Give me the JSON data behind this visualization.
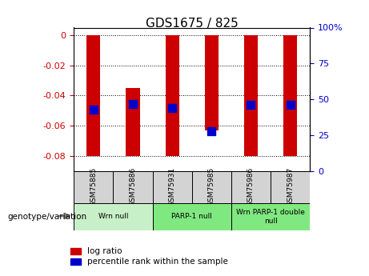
{
  "title": "GDS1675 / 825",
  "samples": [
    "GSM75885",
    "GSM75886",
    "GSM75931",
    "GSM75985",
    "GSM75986",
    "GSM75987"
  ],
  "log_ratios": [
    -0.08,
    -0.08,
    -0.08,
    -0.063,
    -0.08,
    -0.08
  ],
  "log_ratio_tops": [
    0.0,
    -0.035,
    0.0,
    0.0,
    0.0,
    0.0
  ],
  "percentile_ranks": [
    43,
    47,
    44,
    28,
    46,
    46
  ],
  "groups": [
    {
      "label": "Wrn null",
      "start": 0,
      "end": 2,
      "color": "#c8f0c8"
    },
    {
      "label": "PARP-1 null",
      "start": 2,
      "end": 4,
      "color": "#80e880"
    },
    {
      "label": "Wrn PARP-1 double\nnull",
      "start": 4,
      "end": 6,
      "color": "#80e880"
    }
  ],
  "ylim_left": [
    -0.09,
    0.005
  ],
  "ylim_right": [
    0,
    100
  ],
  "yticks_left": [
    0,
    -0.02,
    -0.04,
    -0.06,
    -0.08
  ],
  "yticks_right": [
    0,
    25,
    50,
    75,
    100
  ],
  "bar_color": "#cc0000",
  "dot_color": "#0000cc",
  "bar_width": 0.35,
  "dot_size": 50,
  "left_label_color": "#cc0000",
  "right_label_color": "#0000cc",
  "legend_bar_label": "log ratio",
  "legend_dot_label": "percentile rank within the sample",
  "genotype_label": "genotype/variation"
}
